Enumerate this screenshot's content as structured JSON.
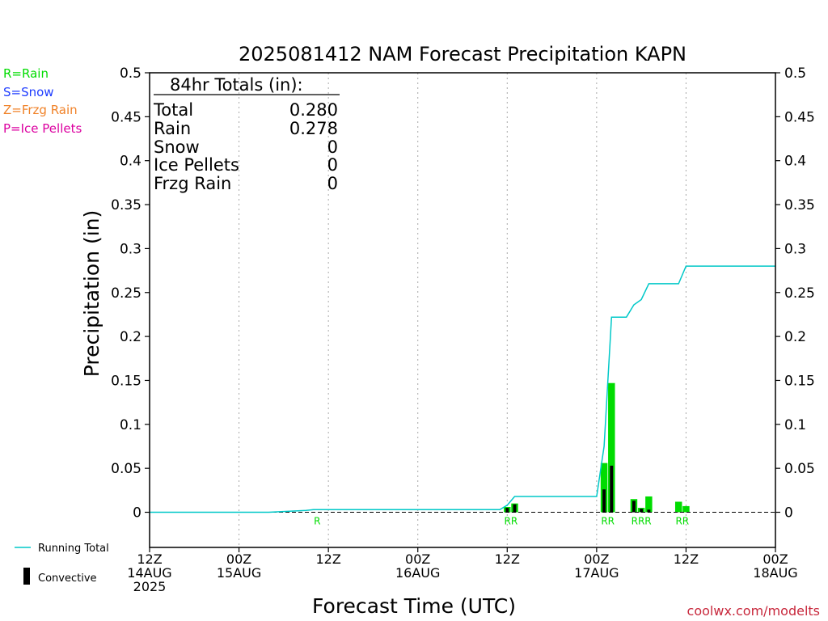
{
  "chart_data": {
    "type": "bar",
    "title": "2025081412 NAM Forecast Precipitation KAPN",
    "xlabel": "Forecast Time (UTC)",
    "ylabel": "Precipitation (in)",
    "ylim": [
      -0.04,
      0.5
    ],
    "yticks": [
      0,
      0.05,
      0.1,
      0.15,
      0.2,
      0.25,
      0.3,
      0.35,
      0.4,
      0.45,
      0.5
    ],
    "ytick_labels": [
      "0",
      "0.05",
      "0.1",
      "0.15",
      "0.2",
      "0.25",
      "0.3",
      "0.35",
      "0.4",
      "0.45",
      "0.5"
    ],
    "x_range_hours": [
      0,
      84
    ],
    "x_ticks": [
      {
        "hour": 0,
        "lines": [
          "12Z",
          "14AUG",
          "2025"
        ]
      },
      {
        "hour": 12,
        "lines": [
          "00Z",
          "15AUG"
        ]
      },
      {
        "hour": 24,
        "lines": [
          "12Z"
        ]
      },
      {
        "hour": 36,
        "lines": [
          "00Z",
          "16AUG"
        ]
      },
      {
        "hour": 48,
        "lines": [
          "12Z"
        ]
      },
      {
        "hour": 60,
        "lines": [
          "00Z",
          "17AUG"
        ]
      },
      {
        "hour": 72,
        "lines": [
          "12Z"
        ]
      },
      {
        "hour": 84,
        "lines": [
          "00Z",
          "18AUG"
        ]
      }
    ],
    "grid": "vertical-dotted",
    "precip_type_legend": [
      {
        "label": "R=Rain",
        "color": "#00dc00"
      },
      {
        "label": "S=Snow",
        "color": "#1e3cff"
      },
      {
        "label": "Z=Frzg Rain",
        "color": "#f08228"
      },
      {
        "label": "P=Ice Pellets",
        "color": "#dc00a0"
      }
    ],
    "totals_box": {
      "heading": "84hr Totals (in):",
      "rows": [
        {
          "label": "Total",
          "value": "0.280"
        },
        {
          "label": "Rain",
          "value": "0.278"
        },
        {
          "label": "Snow",
          "value": "0"
        },
        {
          "label": "Ice Pellets",
          "value": "0"
        },
        {
          "label": "Frzg Rain",
          "value": "0"
        }
      ]
    },
    "running_total": {
      "name": "Running Total",
      "color": "#00c8c8",
      "hours": [
        0,
        16,
        21,
        22,
        24,
        47,
        48,
        49,
        50,
        51,
        60,
        61,
        62,
        63,
        64,
        65,
        66,
        67,
        68,
        69,
        71,
        72,
        84
      ],
      "values": [
        0,
        0,
        0.002,
        0.003,
        0.003,
        0.003,
        0.008,
        0.018,
        0.018,
        0.018,
        0.018,
        0.075,
        0.222,
        0.222,
        0.222,
        0.236,
        0.242,
        0.26,
        0.26,
        0.26,
        0.26,
        0.28,
        0.28
      ]
    },
    "bars": {
      "color": "#00dc00",
      "hours": [
        48,
        49,
        61,
        62,
        65,
        66,
        67,
        71,
        72
      ],
      "values": [
        0.006,
        0.01,
        0.056,
        0.147,
        0.015,
        0.005,
        0.018,
        0.012,
        0.007
      ]
    },
    "convective": {
      "name": "Convective",
      "color": "#000000",
      "hours": [
        48,
        49,
        61,
        62,
        65,
        66,
        67
      ],
      "values": [
        0.005,
        0.009,
        0.026,
        0.053,
        0.013,
        0.004,
        0.003
      ]
    },
    "type_markers": [
      {
        "hour": 22.5,
        "text": "R"
      },
      {
        "hour": 48.5,
        "text": "RR"
      },
      {
        "hour": 61.5,
        "text": "RR"
      },
      {
        "hour": 66,
        "text": "RRR"
      },
      {
        "hour": 71.5,
        "text": "RR"
      }
    ],
    "legend": [
      {
        "label": "Running Total",
        "kind": "line"
      },
      {
        "label": "Convective",
        "kind": "bar"
      }
    ]
  },
  "footer": {
    "credit": "coolwx.com/modelts"
  }
}
